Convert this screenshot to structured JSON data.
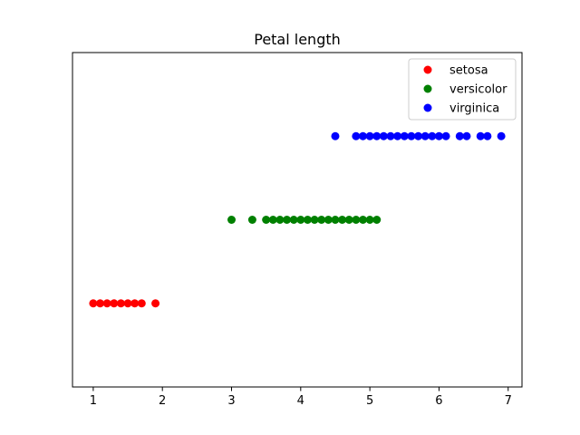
{
  "chart_data": {
    "type": "scatter",
    "title": "Petal length",
    "xlabel": "",
    "ylabel": "",
    "xlim": [
      0.7,
      7.2
    ],
    "ylim": [
      0,
      4
    ],
    "x_ticks": [
      1,
      2,
      3,
      4,
      5,
      6,
      7
    ],
    "y_ticks": [],
    "grid": false,
    "legend_position": "upper right",
    "series": [
      {
        "name": "setosa",
        "color": "#ff0000",
        "y": 1,
        "x": [
          1.0,
          1.1,
          1.2,
          1.3,
          1.4,
          1.5,
          1.6,
          1.7,
          1.9
        ]
      },
      {
        "name": "versicolor",
        "color": "#008000",
        "y": 2,
        "x": [
          3.0,
          3.3,
          3.5,
          3.6,
          3.7,
          3.8,
          3.9,
          4.0,
          4.1,
          4.2,
          4.3,
          4.4,
          4.5,
          4.6,
          4.7,
          4.8,
          4.9,
          5.0,
          5.1
        ]
      },
      {
        "name": "virginica",
        "color": "#0000ff",
        "y": 3,
        "x": [
          4.5,
          4.8,
          4.9,
          5.0,
          5.1,
          5.2,
          5.3,
          5.4,
          5.5,
          5.6,
          5.7,
          5.8,
          5.9,
          6.0,
          6.1,
          6.3,
          6.4,
          6.6,
          6.7,
          6.9
        ]
      }
    ]
  }
}
